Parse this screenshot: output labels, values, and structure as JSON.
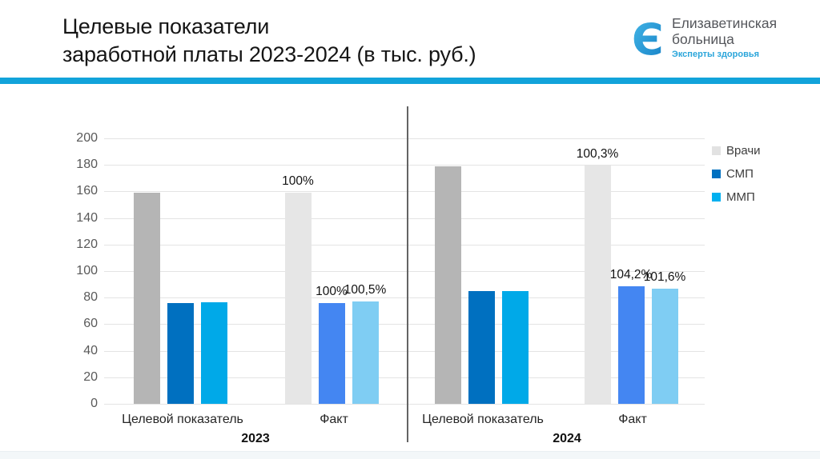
{
  "slide": {
    "title_line1": "Целевые показатели",
    "title_line2": "заработной платы 2023-2024 (в тыс. руб.)"
  },
  "logo": {
    "icon_glyph": "Є",
    "name_line1": "Елизаветинская",
    "name_line2": "больница",
    "tagline": "Эксперты здоровья",
    "accent_color": "#29abe2"
  },
  "theme": {
    "band_color": "#12a3da",
    "divider_color": "#646464",
    "gridline_color": "#e4e4e4",
    "axis_text_color": "#595959"
  },
  "chart_data": {
    "type": "bar",
    "title": "Целевые показатели заработной платы 2023-2024 (в тыс. руб.)",
    "units": "тыс. руб.",
    "ylim": [
      0,
      200
    ],
    "yticks": [
      0,
      20,
      40,
      60,
      80,
      100,
      120,
      140,
      160,
      180,
      200
    ],
    "grid": true,
    "legend_position": "right",
    "series": [
      {
        "key": "vrachi",
        "name": "Врачи",
        "color_target": "#b5b5b5",
        "color_fact": "#e6e6e6",
        "legend_color": "#e2e2e2"
      },
      {
        "key": "smp",
        "name": "СМП",
        "color_target": "#0070c0",
        "color_fact": "#4486f2",
        "legend_color": "#0070c0"
      },
      {
        "key": "mmp",
        "name": "ММП",
        "color_target": "#00a9e8",
        "color_fact": "#7fcdf3",
        "legend_color": "#00b0f0"
      }
    ],
    "groups": [
      {
        "key": "2023-target",
        "year": "2023",
        "category": "Целевой показатель",
        "style": "target",
        "values": [
          159,
          76,
          76.5
        ],
        "labels": [
          "",
          "",
          ""
        ]
      },
      {
        "key": "2023-fact",
        "year": "2023",
        "category": "Факт",
        "style": "fact",
        "values": [
          159,
          76,
          76.9
        ],
        "labels": [
          "100%",
          "100%",
          "100,5%"
        ]
      },
      {
        "key": "2024-target",
        "year": "2024",
        "category": "Целевой показатель",
        "style": "target",
        "values": [
          179,
          84.8,
          85.2
        ],
        "labels": [
          "",
          "",
          ""
        ]
      },
      {
        "key": "2024-fact",
        "year": "2024",
        "category": "Факт",
        "style": "fact",
        "values": [
          179.5,
          88.4,
          86.6
        ],
        "labels": [
          "100,3%",
          "104,2%",
          "101,6%"
        ]
      }
    ],
    "x_axis_labels": [
      "Целевой показатель",
      "Факт",
      "Целевой показатель",
      "Факт"
    ],
    "year_labels": [
      "2023",
      "2024"
    ]
  }
}
